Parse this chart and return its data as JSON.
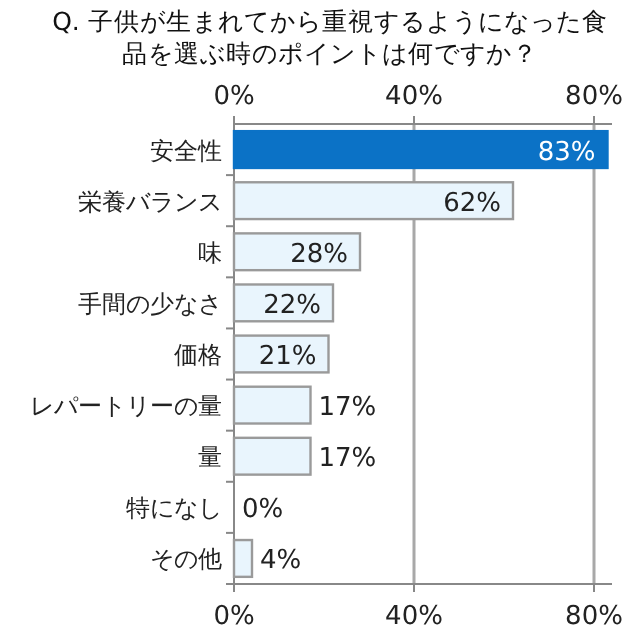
{
  "chart_data": {
    "type": "bar",
    "orientation": "horizontal",
    "title": "Q. 子供が生まれてから重視するようになった食品を選ぶ時のポイントは何ですか？",
    "categories": [
      "安全性",
      "栄養バランス",
      "味",
      "手間の少なさ",
      "価格",
      "レパートリーの量",
      "量",
      "特になし",
      "その他"
    ],
    "values": [
      83,
      62,
      28,
      22,
      21,
      17,
      17,
      0,
      4
    ],
    "value_labels": [
      "83%",
      "62%",
      "28%",
      "22%",
      "21%",
      "17%",
      "17%",
      "0%",
      "4%"
    ],
    "colors": [
      "#0b72c6",
      "#e9f5fd",
      "#e9f5fd",
      "#e9f5fd",
      "#e9f5fd",
      "#e9f5fd",
      "#e9f5fd",
      "#e9f5fd",
      "#e9f5fd"
    ],
    "xlim": [
      0,
      84
    ],
    "xticks": [
      {
        "value": 0,
        "label": "0%"
      },
      {
        "value": 40,
        "label": "40%"
      },
      {
        "value": 80,
        "label": "80%"
      }
    ],
    "x2lim": [
      0,
      84
    ],
    "x2ticks": [
      {
        "value": 0,
        "label": "0%"
      },
      {
        "value": 40,
        "label": "40%"
      },
      {
        "value": 80,
        "label": "80%"
      }
    ],
    "grid": "x"
  }
}
